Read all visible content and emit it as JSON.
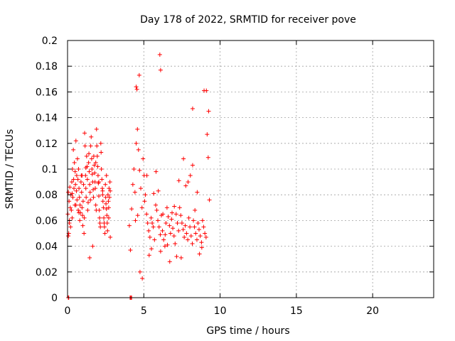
{
  "chart_data": {
    "type": "scatter",
    "title": "Day 178 of 2022, SRMTID for receiver pove",
    "xlabel": "GPS time / hours",
    "ylabel": "SRMTID / TECUs",
    "xlim": [
      0,
      24
    ],
    "ylim": [
      0,
      0.2
    ],
    "xticks": [
      0,
      5,
      10,
      15,
      20
    ],
    "xtick_labels": [
      "0",
      "5",
      "10",
      "15",
      "20"
    ],
    "yticks": [
      0,
      0.02,
      0.04,
      0.06,
      0.08,
      0.1,
      0.12,
      0.14,
      0.16,
      0.18,
      0.2
    ],
    "ytick_labels": [
      "0",
      "0.02",
      "0.04",
      "0.06",
      "0.08",
      "0.1",
      "0.12",
      "0.14",
      "0.16",
      "0.18",
      "0.2"
    ],
    "grid": true,
    "marker": "+",
    "marker_color": "#ff0000",
    "series": [
      {
        "x": [
          0.02,
          0.05,
          0.08,
          0.1,
          0.12,
          0.15,
          0.18,
          0.2,
          0.22,
          0.25,
          0.28,
          0.3,
          0.32,
          0.35,
          0.38,
          0.4,
          0.42,
          0.45,
          0.48,
          0.5,
          0.52,
          0.55,
          0.58,
          0.6,
          0.62,
          0.65,
          0.68,
          0.7,
          0.72,
          0.75,
          0.78,
          0.8,
          0.82,
          0.85,
          0.88,
          0.9,
          0.92,
          0.95,
          0.98,
          1.0,
          1.02,
          1.05,
          1.08,
          1.1,
          1.12,
          1.15,
          1.18,
          1.2,
          1.22,
          1.25,
          1.28,
          1.3,
          1.32,
          1.35,
          1.38,
          1.4,
          1.42,
          1.45,
          1.48,
          1.5,
          1.52,
          1.55,
          1.58,
          1.6,
          1.62,
          1.65,
          1.68,
          1.7,
          1.72,
          1.75,
          1.78,
          1.8,
          1.82,
          1.85,
          1.88,
          1.9,
          1.92,
          1.95,
          1.98,
          2.0,
          2.02,
          2.05,
          2.08,
          2.1,
          2.12,
          2.15,
          2.18,
          2.2,
          2.22,
          2.25,
          2.28,
          2.3,
          2.32,
          2.35,
          2.38,
          2.4,
          2.42,
          2.45,
          2.48,
          2.5,
          2.52,
          2.55,
          2.58,
          2.6,
          2.62,
          2.65,
          2.68,
          2.7,
          2.72,
          2.75,
          2.78,
          2.8,
          0.05,
          0.12,
          0.3,
          0.55,
          0.75,
          0.95,
          1.2,
          1.45,
          1.65,
          1.85,
          2.05,
          2.3,
          2.55,
          2.7,
          2.8,
          4.05,
          4.12,
          4.2,
          4.28,
          4.35,
          4.42,
          4.5,
          4.58,
          4.65,
          4.72,
          4.8,
          4.88,
          4.95,
          5.02,
          5.1,
          5.18,
          5.25,
          5.32,
          5.4,
          5.48,
          5.55,
          5.62,
          5.7,
          5.78,
          5.85,
          5.92,
          6.0,
          6.08,
          6.15,
          6.22,
          6.3,
          6.38,
          6.45,
          6.52,
          6.6,
          6.68,
          6.75,
          6.82,
          6.9,
          6.98,
          7.05,
          7.12,
          7.2,
          7.28,
          7.35,
          7.42,
          7.5,
          7.58,
          7.65,
          7.72,
          7.8,
          7.88,
          7.95,
          8.02,
          8.1,
          8.18,
          8.25,
          8.32,
          8.4,
          8.48,
          8.55,
          8.62,
          8.7,
          8.78,
          8.85,
          8.92,
          9.0,
          9.08,
          9.15,
          9.22,
          9.3,
          4.45,
          4.6,
          4.75,
          4.9,
          5.05,
          5.2,
          5.35,
          5.5,
          5.65,
          5.8,
          5.95,
          6.1,
          6.25,
          6.4,
          6.55,
          6.7,
          6.85,
          7.0,
          7.15,
          7.3,
          7.45,
          7.6,
          7.75,
          7.9,
          8.05,
          8.2,
          8.35,
          8.5,
          8.65,
          8.8,
          8.95,
          9.1,
          9.25,
          4.5,
          4.55,
          4.7,
          6.05,
          6.1,
          8.2,
          4.1,
          4.15,
          4.2,
          0.05,
          0.08
        ],
        "y": [
          0.065,
          0.082,
          0.05,
          0.075,
          0.06,
          0.086,
          0.07,
          0.055,
          0.08,
          0.068,
          0.09,
          0.062,
          0.1,
          0.078,
          0.115,
          0.092,
          0.085,
          0.105,
          0.072,
          0.098,
          0.088,
          0.122,
          0.083,
          0.095,
          0.076,
          0.108,
          0.092,
          0.068,
          0.1,
          0.085,
          0.078,
          0.06,
          0.072,
          0.066,
          0.09,
          0.095,
          0.082,
          0.07,
          0.064,
          0.056,
          0.075,
          0.088,
          0.05,
          0.062,
          0.128,
          0.118,
          0.095,
          0.085,
          0.078,
          0.11,
          0.102,
          0.092,
          0.068,
          0.074,
          0.105,
          0.112,
          0.098,
          0.088,
          0.082,
          0.076,
          0.118,
          0.125,
          0.108,
          0.1,
          0.096,
          0.09,
          0.084,
          0.078,
          0.11,
          0.103,
          0.097,
          0.09,
          0.085,
          0.072,
          0.068,
          0.131,
          0.118,
          0.11,
          0.102,
          0.095,
          0.089,
          0.079,
          0.068,
          0.062,
          0.058,
          0.055,
          0.12,
          0.113,
          0.1,
          0.092,
          0.085,
          0.08,
          0.075,
          0.07,
          0.062,
          0.058,
          0.055,
          0.05,
          0.088,
          0.078,
          0.073,
          0.069,
          0.064,
          0.058,
          0.052,
          0.08,
          0.075,
          0.07,
          0.085,
          0.078,
          0.09,
          0.083,
          0.048,
          0.058,
          0.081,
          0.072,
          0.066,
          0.095,
          0.101,
          0.031,
          0.04,
          0.105,
          0.09,
          0.083,
          0.095,
          0.062,
          0.047,
          0.056,
          0.037,
          0.069,
          0.088,
          0.1,
          0.082,
          0.12,
          0.131,
          0.115,
          0.099,
          0.085,
          0.07,
          0.108,
          0.095,
          0.08,
          0.065,
          0.058,
          0.052,
          0.047,
          0.062,
          0.058,
          0.055,
          0.045,
          0.072,
          0.068,
          0.06,
          0.055,
          0.049,
          0.064,
          0.052,
          0.045,
          0.04,
          0.058,
          0.07,
          0.063,
          0.056,
          0.05,
          0.061,
          0.054,
          0.048,
          0.042,
          0.065,
          0.058,
          0.052,
          0.07,
          0.064,
          0.058,
          0.053,
          0.047,
          0.056,
          0.05,
          0.045,
          0.062,
          0.055,
          0.048,
          0.042,
          0.06,
          0.055,
          0.05,
          0.045,
          0.058,
          0.053,
          0.048,
          0.043,
          0.06,
          0.055,
          0.05,
          0.047,
          0.127,
          0.109,
          0.076,
          0.06,
          0.064,
          0.02,
          0.015,
          0.075,
          0.095,
          0.033,
          0.038,
          0.081,
          0.098,
          0.083,
          0.036,
          0.065,
          0.049,
          0.041,
          0.028,
          0.066,
          0.071,
          0.032,
          0.091,
          0.031,
          0.108,
          0.087,
          0.09,
          0.095,
          0.103,
          0.068,
          0.082,
          0.034,
          0.039,
          0.161,
          0.161,
          0.145,
          0.164,
          0.162,
          0.173,
          0.189,
          0.177,
          0.147,
          0.0,
          0.0,
          0.0,
          0.0,
          0.0
        ]
      }
    ]
  }
}
